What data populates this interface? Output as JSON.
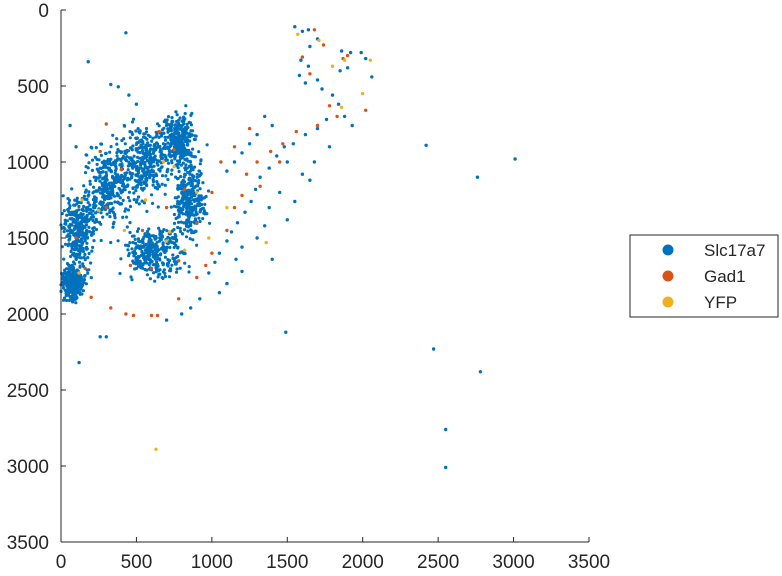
{
  "chart_data": {
    "type": "scatter",
    "title": "",
    "xlabel": "",
    "ylabel": "",
    "xlim": [
      0,
      3500
    ],
    "ylim": [
      0,
      3500
    ],
    "y_reversed": true,
    "grid": false,
    "legend_position": "east-outside",
    "x_ticks": [
      "0",
      "500",
      "1000",
      "1500",
      "2000",
      "2500",
      "3000",
      "3500"
    ],
    "y_ticks": [
      "0",
      "500",
      "1000",
      "1500",
      "2000",
      "2500",
      "3000",
      "3500"
    ],
    "series": [
      {
        "name": "Slc17a7",
        "color": "#0072BD",
        "points": [
          [
            430,
            150
          ],
          [
            180,
            340
          ],
          [
            330,
            490
          ],
          [
            380,
            505
          ],
          [
            2420,
            890
          ],
          [
            3010,
            980
          ],
          [
            2760,
            1100
          ],
          [
            1490,
            2120
          ],
          [
            2470,
            2230
          ],
          [
            2780,
            2380
          ],
          [
            2550,
            2760
          ],
          [
            2550,
            3010
          ],
          [
            260,
            2150
          ],
          [
            300,
            2150
          ],
          [
            120,
            2320
          ],
          [
            1550,
            110
          ],
          [
            1600,
            140
          ],
          [
            1640,
            130
          ],
          [
            1700,
            190
          ],
          [
            1650,
            240
          ],
          [
            1590,
            330
          ],
          [
            1640,
            370
          ],
          [
            1580,
            430
          ],
          [
            1620,
            480
          ],
          [
            1700,
            460
          ],
          [
            1730,
            520
          ],
          [
            1860,
            270
          ],
          [
            1920,
            280
          ],
          [
            1990,
            280
          ],
          [
            2020,
            320
          ],
          [
            2060,
            440
          ],
          [
            1850,
            400
          ],
          [
            1900,
            380
          ],
          [
            1800,
            560
          ],
          [
            1840,
            620
          ],
          [
            1880,
            700
          ],
          [
            1930,
            760
          ],
          [
            1760,
            720
          ],
          [
            1700,
            780
          ],
          [
            1620,
            820
          ],
          [
            1540,
            880
          ],
          [
            1480,
            900
          ],
          [
            1430,
            960
          ],
          [
            1380,
            1040
          ],
          [
            1320,
            1100
          ],
          [
            1290,
            1180
          ],
          [
            1260,
            1260
          ],
          [
            1220,
            1330
          ],
          [
            1170,
            1400
          ],
          [
            1130,
            1460
          ],
          [
            1100,
            1520
          ],
          [
            1050,
            1600
          ],
          [
            1020,
            1660
          ],
          [
            980,
            1730
          ],
          [
            1500,
            1000
          ],
          [
            1600,
            1080
          ],
          [
            1450,
            1200
          ],
          [
            1380,
            1300
          ],
          [
            1350,
            1420
          ],
          [
            1300,
            1500
          ],
          [
            1400,
            1640
          ],
          [
            1200,
            1560
          ],
          [
            1160,
            1640
          ],
          [
            1200,
            1720
          ],
          [
            1100,
            1800
          ],
          [
            1050,
            1860
          ],
          [
            1350,
            700
          ],
          [
            1400,
            760
          ],
          [
            1300,
            820
          ],
          [
            1250,
            880
          ],
          [
            1200,
            940
          ],
          [
            1150,
            1000
          ],
          [
            1100,
            1060
          ],
          [
            60,
            760
          ],
          [
            100,
            900
          ],
          [
            450,
            560
          ],
          [
            500,
            620
          ],
          [
            1780,
            900
          ],
          [
            1680,
            1000
          ],
          [
            1650,
            1120
          ],
          [
            1550,
            1260
          ],
          [
            1500,
            1380
          ],
          [
            920,
            1900
          ],
          [
            860,
            1960
          ],
          [
            800,
            2000
          ],
          [
            700,
            2040
          ]
        ],
        "cluster": {
          "x_range": [
            0,
            1000
          ],
          "y_range": [
            620,
            1950
          ],
          "approx_count": 2200
        }
      },
      {
        "name": "Gad1",
        "color": "#D95319",
        "points": [
          [
            1680,
            130
          ],
          [
            1740,
            230
          ],
          [
            1600,
            310
          ],
          [
            1650,
            420
          ],
          [
            1870,
            320
          ],
          [
            1900,
            300
          ],
          [
            1780,
            630
          ],
          [
            1830,
            700
          ],
          [
            2020,
            660
          ],
          [
            1700,
            760
          ],
          [
            1560,
            800
          ],
          [
            1470,
            880
          ],
          [
            1390,
            930
          ],
          [
            1300,
            1000
          ],
          [
            1230,
            1080
          ],
          [
            1200,
            1220
          ],
          [
            1150,
            1300
          ],
          [
            1100,
            1450
          ],
          [
            1000,
            1600
          ],
          [
            960,
            1680
          ],
          [
            900,
            1760
          ],
          [
            780,
            1900
          ],
          [
            640,
            2010
          ],
          [
            600,
            2010
          ],
          [
            480,
            2010
          ],
          [
            430,
            2000
          ],
          [
            330,
            1960
          ],
          [
            200,
            1890
          ],
          [
            160,
            1700
          ],
          [
            100,
            1500
          ],
          [
            300,
            1300
          ],
          [
            400,
            1050
          ],
          [
            260,
            930
          ],
          [
            300,
            750
          ],
          [
            650,
            800
          ],
          [
            750,
            920
          ],
          [
            820,
            1180
          ],
          [
            700,
            1300
          ],
          [
            540,
            1450
          ],
          [
            460,
            1680
          ],
          [
            600,
            1700
          ],
          [
            780,
            1650
          ],
          [
            900,
            1400
          ],
          [
            1000,
            1200
          ],
          [
            1060,
            1000
          ],
          [
            1150,
            900
          ],
          [
            1250,
            780
          ],
          [
            1450,
            1000
          ],
          [
            1320,
            1160
          ]
        ]
      },
      {
        "name": "YFP",
        "color": "#EDB120",
        "points": [
          [
            1570,
            160
          ],
          [
            1710,
            200
          ],
          [
            1800,
            370
          ],
          [
            1880,
            330
          ],
          [
            2000,
            550
          ],
          [
            2050,
            330
          ],
          [
            1860,
            640
          ],
          [
            1360,
            1530
          ],
          [
            1100,
            1300
          ],
          [
            900,
            1200
          ],
          [
            700,
            1520
          ],
          [
            720,
            1460
          ],
          [
            560,
            1250
          ],
          [
            420,
            1450
          ],
          [
            250,
            1320
          ],
          [
            140,
            1250
          ],
          [
            120,
            1730
          ],
          [
            680,
            1000
          ],
          [
            750,
            1030
          ],
          [
            820,
            1580
          ],
          [
            980,
            1500
          ],
          [
            630,
            2890
          ]
        ]
      }
    ]
  }
}
